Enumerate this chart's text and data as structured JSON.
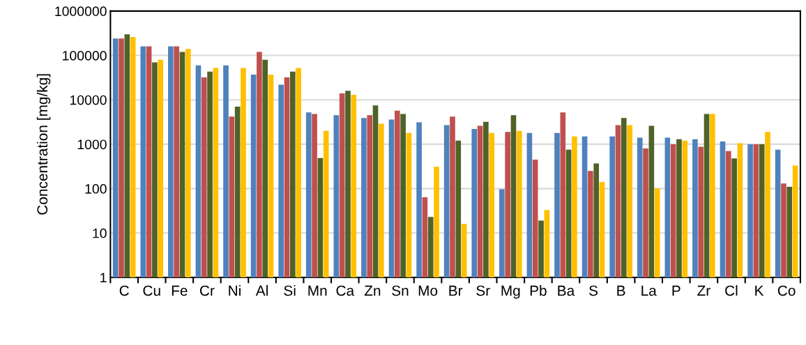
{
  "chart_data": {
    "type": "bar",
    "ylabel": "Concentration [mg/kg]",
    "categories": [
      "C",
      "Cu",
      "Fe",
      "Cr",
      "Ni",
      "Al",
      "Si",
      "Mn",
      "Ca",
      "Zn",
      "Sn",
      "Mo",
      "Br",
      "Sr",
      "Mg",
      "Pb",
      "Ba",
      "S",
      "B",
      "La",
      "P",
      "Zr",
      "Cl",
      "K",
      "Co"
    ],
    "series": [
      {
        "color": "#4f81bd",
        "values": [
          240000,
          160000,
          160000,
          60000,
          60000,
          37000,
          22000,
          5200,
          4500,
          3900,
          3600,
          3100,
          2700,
          2200,
          97,
          1800,
          1800,
          1500,
          1500,
          1400,
          1400,
          1300,
          1150,
          1000,
          750
        ]
      },
      {
        "color": "#c0504d",
        "values": [
          240000,
          160000,
          160000,
          32000,
          4200,
          120000,
          32000,
          4800,
          14000,
          4500,
          5700,
          64,
          4200,
          2600,
          1900,
          450,
          5200,
          250,
          2700,
          800,
          1000,
          880,
          700,
          1000,
          130
        ]
      },
      {
        "color": "#4f6228",
        "values": [
          300000,
          70000,
          120000,
          43000,
          7000,
          80000,
          43000,
          490,
          16000,
          7500,
          4800,
          23,
          1200,
          3200,
          4500,
          19,
          750,
          370,
          3900,
          2600,
          1300,
          4800,
          480,
          1000,
          110
        ]
      },
      {
        "color": "#ffc000",
        "values": [
          260000,
          80000,
          140000,
          52000,
          52000,
          37000,
          52000,
          2000,
          13000,
          2900,
          1800,
          310,
          16,
          1800,
          2000,
          33,
          1500,
          140,
          2700,
          100,
          1200,
          4800,
          1050,
          1900,
          330
        ]
      }
    ],
    "log": "y",
    "ylim": [
      1,
      1000000
    ],
    "yticks": [
      1,
      10,
      100,
      1000,
      10000,
      100000,
      1000000
    ],
    "grid": "y"
  }
}
